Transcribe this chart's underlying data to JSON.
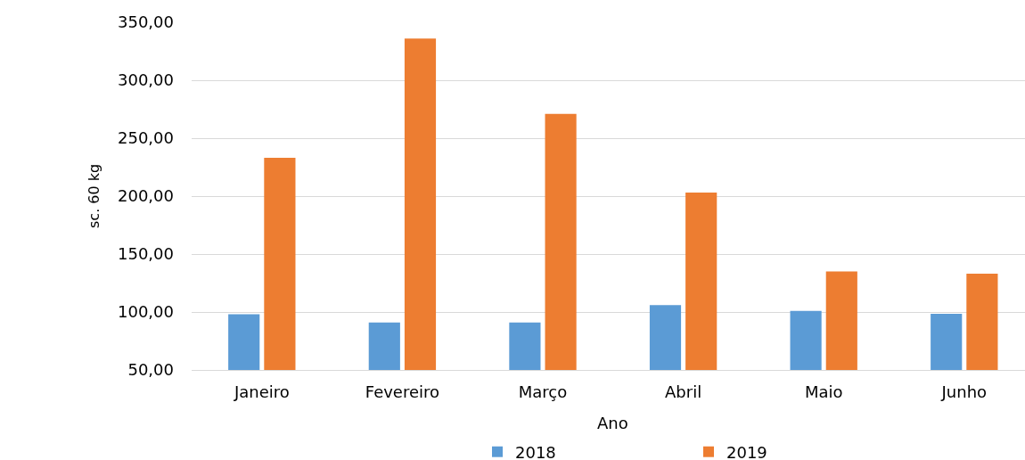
{
  "chart_data": {
    "type": "bar",
    "xlabel": "Ano",
    "ylabel": "sc. 60 kg",
    "categories": [
      "Janeiro",
      "Fevereiro",
      "Março",
      "Abril",
      "Maio",
      "Junho"
    ],
    "series": [
      {
        "name": "2018",
        "color": "#5b9bd5",
        "values": [
          98,
          91,
          91,
          106,
          101,
          98.5
        ]
      },
      {
        "name": "2019",
        "color": "#ed7d31",
        "values": [
          233,
          336,
          271,
          203,
          135,
          133
        ]
      }
    ],
    "ylim": [
      50,
      350
    ],
    "yticks": [
      {
        "value": 50,
        "label": "50,00"
      },
      {
        "value": 100,
        "label": "100,00"
      },
      {
        "value": 150,
        "label": "150,00"
      },
      {
        "value": 200,
        "label": "200,00"
      },
      {
        "value": 250,
        "label": "250,00"
      },
      {
        "value": 300,
        "label": "300,00"
      },
      {
        "value": 350,
        "label": "350,00"
      }
    ],
    "grid": "y",
    "legend": "bottom"
  }
}
